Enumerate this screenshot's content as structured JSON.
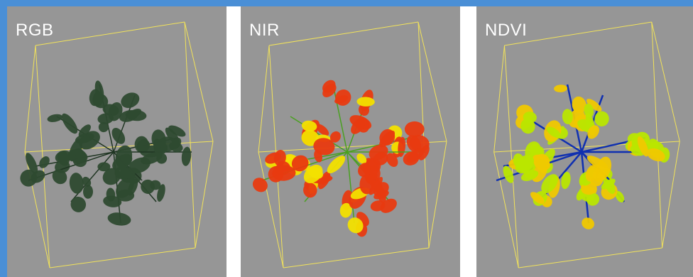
{
  "panels": [
    {
      "id": "rgb",
      "label": "RGB",
      "leaf_color": "#2e4a30",
      "vein_color": "#1f3522"
    },
    {
      "id": "nir",
      "label": "NIR",
      "leaf_color": "#e83a10",
      "edge_color": "#f2e000",
      "vein_color": "#4aa020"
    },
    {
      "id": "ndvi",
      "label": "NDVI",
      "leaf_color": "#b9e600",
      "edge_color": "#f0c800",
      "vein_color": "#1030b0"
    }
  ],
  "colors": {
    "background_border": "#4a8fd6",
    "panel_background": "#969696",
    "bounding_box": "#f2e35a",
    "label_text": "#ffffff"
  }
}
